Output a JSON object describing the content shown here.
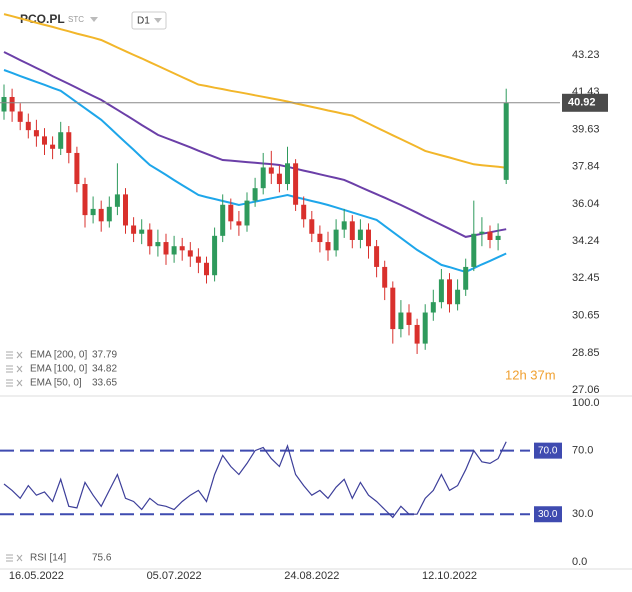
{
  "header": {
    "symbol": "PCO.PL",
    "market": "STC",
    "timeframe": "D1"
  },
  "chart_data": [
    {
      "type": "candlestick",
      "countdown": "12h 37m",
      "categories": [
        null,
        null,
        null,
        null,
        "16.05.2022",
        null,
        null,
        null,
        null,
        null,
        null,
        null,
        null,
        null,
        null,
        null,
        null,
        null,
        null,
        null,
        null,
        "05.07.2022",
        null,
        null,
        null,
        null,
        null,
        null,
        null,
        null,
        null,
        null,
        null,
        null,
        null,
        null,
        null,
        null,
        "24.08.2022",
        null,
        null,
        null,
        null,
        null,
        null,
        null,
        null,
        null,
        null,
        null,
        null,
        null,
        null,
        null,
        null,
        "12.10.2022",
        null,
        null,
        null,
        null,
        null,
        null,
        null
      ],
      "open": [
        40.5,
        41.2,
        40.5,
        40.0,
        39.6,
        39.3,
        38.9,
        38.7,
        39.5,
        38.5,
        37.0,
        35.5,
        35.8,
        35.2,
        35.9,
        36.5,
        35.0,
        34.6,
        34.8,
        34.0,
        34.2,
        33.6,
        34.0,
        33.8,
        33.5,
        33.2,
        32.6,
        34.5,
        36.0,
        35.2,
        35.0,
        36.2,
        36.8,
        37.8,
        37.5,
        37.0,
        38.0,
        36.0,
        35.3,
        34.6,
        34.2,
        33.8,
        34.8,
        35.2,
        34.3,
        34.8,
        34.0,
        33.0,
        32.0,
        30.0,
        30.8,
        30.2,
        29.3,
        30.8,
        31.3,
        32.4,
        31.2,
        31.9,
        33.0,
        34.6,
        34.7,
        34.3,
        37.2
      ],
      "high": [
        41.8,
        41.6,
        40.9,
        40.4,
        40.1,
        39.7,
        39.3,
        40.0,
        39.8,
        38.8,
        37.3,
        36.4,
        36.2,
        36.4,
        38.0,
        36.8,
        35.4,
        35.3,
        35.1,
        34.8,
        34.6,
        34.5,
        34.4,
        34.2,
        33.9,
        33.5,
        34.9,
        36.5,
        36.3,
        35.7,
        36.6,
        37.3,
        38.5,
        38.6,
        37.9,
        38.8,
        38.2,
        36.4,
        35.7,
        35.0,
        34.7,
        35.3,
        35.8,
        35.5,
        35.3,
        35.1,
        34.3,
        33.3,
        32.3,
        31.4,
        31.2,
        30.5,
        31.2,
        31.9,
        32.9,
        32.7,
        32.4,
        33.4,
        36.2,
        35.4,
        35.0,
        35.1,
        41.6
      ],
      "low": [
        40.1,
        40.0,
        39.6,
        39.2,
        38.8,
        38.4,
        38.2,
        38.4,
        38.0,
        36.6,
        34.9,
        35.1,
        34.7,
        34.9,
        35.5,
        34.6,
        34.2,
        34.1,
        33.6,
        33.5,
        33.1,
        33.2,
        33.3,
        33.0,
        32.7,
        32.2,
        32.3,
        34.2,
        34.8,
        34.5,
        34.7,
        35.9,
        36.5,
        37.0,
        36.6,
        36.7,
        35.7,
        34.9,
        34.2,
        33.7,
        33.3,
        33.5,
        34.4,
        33.9,
        33.9,
        33.4,
        32.5,
        31.4,
        29.3,
        29.6,
        29.7,
        28.8,
        29.0,
        30.4,
        31.0,
        30.8,
        30.9,
        31.6,
        32.8,
        34.0,
        33.9,
        33.8,
        37.0
      ],
      "close": [
        41.2,
        40.5,
        40.0,
        39.6,
        39.3,
        38.9,
        38.7,
        39.5,
        38.5,
        37.0,
        35.5,
        35.8,
        35.2,
        35.9,
        36.5,
        35.0,
        34.6,
        34.8,
        34.0,
        34.2,
        33.6,
        34.0,
        33.8,
        33.5,
        33.2,
        32.6,
        34.5,
        36.0,
        35.2,
        35.0,
        36.2,
        36.8,
        37.8,
        37.5,
        37.0,
        38.0,
        36.0,
        35.3,
        34.6,
        34.2,
        33.8,
        34.8,
        35.2,
        34.3,
        34.8,
        34.0,
        33.0,
        32.0,
        30.0,
        30.8,
        30.2,
        29.3,
        30.8,
        31.3,
        32.4,
        31.2,
        31.9,
        33.0,
        34.6,
        34.7,
        34.3,
        34.5,
        40.92
      ],
      "up_color": "#2e9a5c",
      "down_color": "#d9302c",
      "series": [
        {
          "name": "EMA [200, 0]",
          "color": "#f2b62a",
          "values": [
            45.2,
            45.1,
            44.99,
            44.89,
            44.78,
            44.68,
            44.58,
            44.47,
            44.37,
            44.26,
            44.16,
            44.06,
            43.95,
            43.77,
            43.59,
            43.41,
            43.23,
            43.06,
            42.88,
            42.7,
            42.52,
            42.34,
            42.16,
            41.98,
            41.8,
            41.73,
            41.65,
            41.58,
            41.5,
            41.43,
            41.36,
            41.28,
            41.21,
            41.13,
            41.06,
            40.98,
            40.89,
            40.81,
            40.72,
            40.64,
            40.55,
            40.47,
            40.38,
            40.3,
            40.11,
            39.92,
            39.73,
            39.54,
            39.35,
            39.17,
            38.98,
            38.79,
            38.6,
            38.49,
            38.38,
            38.28,
            38.17,
            38.06,
            37.95,
            37.91,
            37.87,
            37.83,
            37.79
          ]
        },
        {
          "name": "EMA [100, 0]",
          "color": "#6b3fa8",
          "values": [
            43.37,
            43.18,
            42.98,
            42.79,
            42.6,
            42.41,
            42.21,
            42.02,
            41.83,
            41.64,
            41.44,
            41.25,
            41.06,
            40.82,
            40.58,
            40.34,
            40.1,
            39.85,
            39.61,
            39.37,
            39.22,
            39.07,
            38.92,
            38.77,
            38.61,
            38.46,
            38.31,
            38.16,
            38.13,
            38.09,
            38.06,
            38.03,
            37.99,
            37.96,
            37.92,
            37.83,
            37.74,
            37.65,
            37.56,
            37.47,
            37.38,
            37.29,
            37.2,
            37.03,
            36.85,
            36.68,
            36.51,
            36.34,
            36.16,
            35.99,
            35.8,
            35.61,
            35.41,
            35.22,
            35.03,
            34.84,
            34.64,
            34.45,
            34.52,
            34.6,
            34.67,
            34.75,
            34.82
          ]
        },
        {
          "name": "EMA [50, 0]",
          "color": "#1ea6ea",
          "values": [
            42.5,
            42.36,
            42.21,
            42.07,
            41.93,
            41.79,
            41.64,
            41.5,
            41.22,
            40.94,
            40.66,
            40.38,
            40.1,
            39.74,
            39.37,
            39.01,
            38.65,
            38.28,
            37.92,
            37.68,
            37.44,
            37.19,
            36.95,
            36.71,
            36.47,
            36.37,
            36.28,
            36.18,
            36.09,
            35.99,
            36.07,
            36.15,
            36.23,
            36.31,
            36.39,
            36.47,
            36.37,
            36.28,
            36.18,
            36.09,
            35.99,
            35.87,
            35.75,
            35.63,
            35.51,
            35.39,
            35.27,
            34.98,
            34.69,
            34.4,
            34.11,
            33.82,
            33.58,
            33.34,
            33.1,
            32.99,
            32.87,
            32.76,
            32.94,
            33.12,
            33.29,
            33.47,
            33.65
          ]
        }
      ],
      "ylim": [
        26.82,
        45.88
      ],
      "yticks": [
        43.23,
        41.43,
        39.63,
        37.84,
        36.04,
        34.24,
        32.45,
        30.65,
        28.85,
        27.06
      ]
    },
    {
      "type": "line",
      "series": [
        {
          "name": "RSI [14]",
          "color": "#3d3f9a",
          "values": [
            49,
            45,
            40,
            48,
            42,
            44,
            38,
            52,
            35,
            34,
            50,
            42,
            35,
            45,
            55,
            40,
            38,
            33,
            40,
            36,
            35,
            33,
            38,
            42,
            45,
            38,
            55,
            67,
            60,
            55,
            62,
            70,
            72,
            65,
            60,
            73,
            55,
            48,
            42,
            45,
            40,
            47,
            52,
            40,
            50,
            42,
            38,
            33,
            28,
            35,
            30,
            30,
            40,
            45,
            55,
            45,
            48,
            58,
            70,
            63,
            62,
            65,
            75.6
          ]
        }
      ],
      "levels": [
        {
          "value": 70,
          "label": "70.0"
        },
        {
          "value": 30,
          "label": "30.0"
        }
      ],
      "level_color": "#3f4bb0",
      "ylim": [
        -3.8,
        103.1
      ],
      "yticks": [
        {
          "value": 100,
          "label": "100.0"
        },
        {
          "value": 70,
          "label": "70.0"
        },
        {
          "value": 30,
          "label": "30.0"
        },
        {
          "value": 0,
          "label": "0.0"
        }
      ]
    }
  ]
}
